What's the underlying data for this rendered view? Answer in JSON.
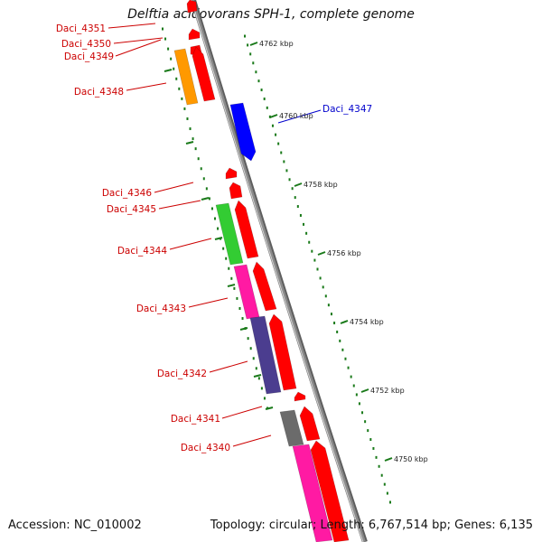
{
  "title": "Delftia acidovorans SPH-1, complete genome",
  "accession": "Accession: NC_010002",
  "summary": "Topology: circular; Length: 6,767,514 bp; Genes: 6,135",
  "colors": {
    "backbone": "#8a8a8a",
    "label_red": "#cc0000",
    "label_blue": "#0000cc",
    "ticks": "#1a7a1a",
    "cds": "#ff0000",
    "orange": "#ff9900",
    "blue": "#0000ff",
    "green": "#33cc33",
    "pink": "#ff1aa3",
    "purple": "#4b3d8f",
    "gray": "#6b6b6b"
  },
  "scale_labels": [
    "4762 kbp",
    "4760 kbp",
    "4758 kbp",
    "4756 kbp",
    "4754 kbp",
    "4752 kbp",
    "4750 kbp"
  ],
  "genes": [
    {
      "label": "Daci_4351",
      "color": "label_red"
    },
    {
      "label": "Daci_4350",
      "color": "label_red"
    },
    {
      "label": "Daci_4349",
      "color": "label_red"
    },
    {
      "label": "Daci_4348",
      "color": "label_red"
    },
    {
      "label": "Daci_4347",
      "color": "label_blue"
    },
    {
      "label": "Daci_4346",
      "color": "label_red"
    },
    {
      "label": "Daci_4345",
      "color": "label_red"
    },
    {
      "label": "Daci_4344",
      "color": "label_red"
    },
    {
      "label": "Daci_4343",
      "color": "label_red"
    },
    {
      "label": "Daci_4342",
      "color": "label_red"
    },
    {
      "label": "Daci_4341",
      "color": "label_red"
    },
    {
      "label": "Daci_4340",
      "color": "label_red"
    }
  ]
}
